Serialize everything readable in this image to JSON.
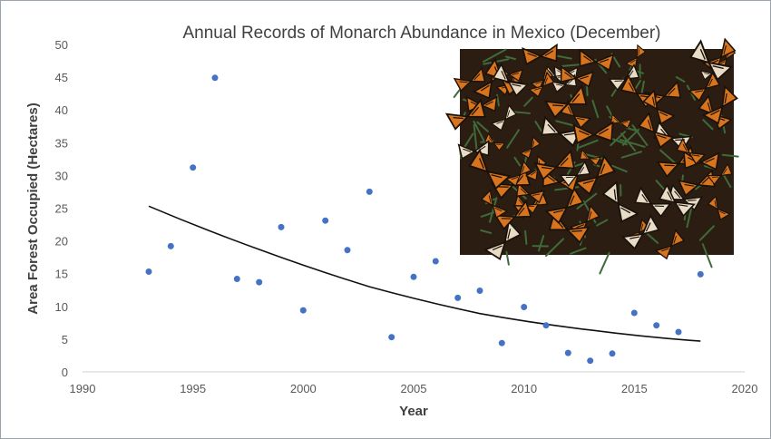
{
  "chart_data": {
    "type": "scatter",
    "title": "Annual Records of Monarch Abundance in Mexico (December)",
    "xlabel": "Year",
    "ylabel": "Area Forest Occupied (Hectares)",
    "xlim": [
      1990,
      2020
    ],
    "ylim": [
      0,
      50
    ],
    "x_ticks": [
      "1990",
      "1995",
      "2000",
      "2005",
      "2010",
      "2015",
      "2020"
    ],
    "y_ticks": [
      "0",
      "5",
      "10",
      "15",
      "20",
      "25",
      "30",
      "35",
      "40",
      "45",
      "50"
    ],
    "grid": false,
    "series": [
      {
        "color": "#4472c4",
        "points": [
          {
            "x": 1993,
            "y": 15.3
          },
          {
            "x": 1994,
            "y": 19.2
          },
          {
            "x": 1995,
            "y": 31.2
          },
          {
            "x": 1996,
            "y": 44.9
          },
          {
            "x": 1997,
            "y": 14.2
          },
          {
            "x": 1998,
            "y": 13.7
          },
          {
            "x": 1999,
            "y": 22.1
          },
          {
            "x": 2000,
            "y": 9.4
          },
          {
            "x": 2001,
            "y": 23.1
          },
          {
            "x": 2002,
            "y": 18.6
          },
          {
            "x": 2003,
            "y": 27.5
          },
          {
            "x": 2004,
            "y": 5.3
          },
          {
            "x": 2005,
            "y": 14.5
          },
          {
            "x": 2006,
            "y": 16.9
          },
          {
            "x": 2007,
            "y": 11.3
          },
          {
            "x": 2008,
            "y": 12.4
          },
          {
            "x": 2009,
            "y": 4.4
          },
          {
            "x": 2010,
            "y": 9.9
          },
          {
            "x": 2011,
            "y": 7.1
          },
          {
            "x": 2012,
            "y": 2.9
          },
          {
            "x": 2013,
            "y": 1.7
          },
          {
            "x": 2014,
            "y": 2.8
          },
          {
            "x": 2015,
            "y": 9.0
          },
          {
            "x": 2016,
            "y": 7.1
          },
          {
            "x": 2017,
            "y": 6.1
          },
          {
            "x": 2018,
            "y": 14.9
          }
        ]
      }
    ],
    "trendline": {
      "type": "exponential",
      "color": "#111111",
      "points": [
        {
          "x": 1993,
          "y": 25.3
        },
        {
          "x": 1998,
          "y": 18.7
        },
        {
          "x": 2003,
          "y": 13.0
        },
        {
          "x": 2008,
          "y": 8.9
        },
        {
          "x": 2013,
          "y": 6.4
        },
        {
          "x": 2018,
          "y": 4.7
        }
      ]
    }
  },
  "inset_photo": {
    "subject": "Cluster of monarch butterflies on oyamel fir branches",
    "colors": {
      "orange": "#d9741e",
      "dark": "#2b1d12",
      "green": "#3f6b3a",
      "light": "#e8dcc6"
    }
  }
}
